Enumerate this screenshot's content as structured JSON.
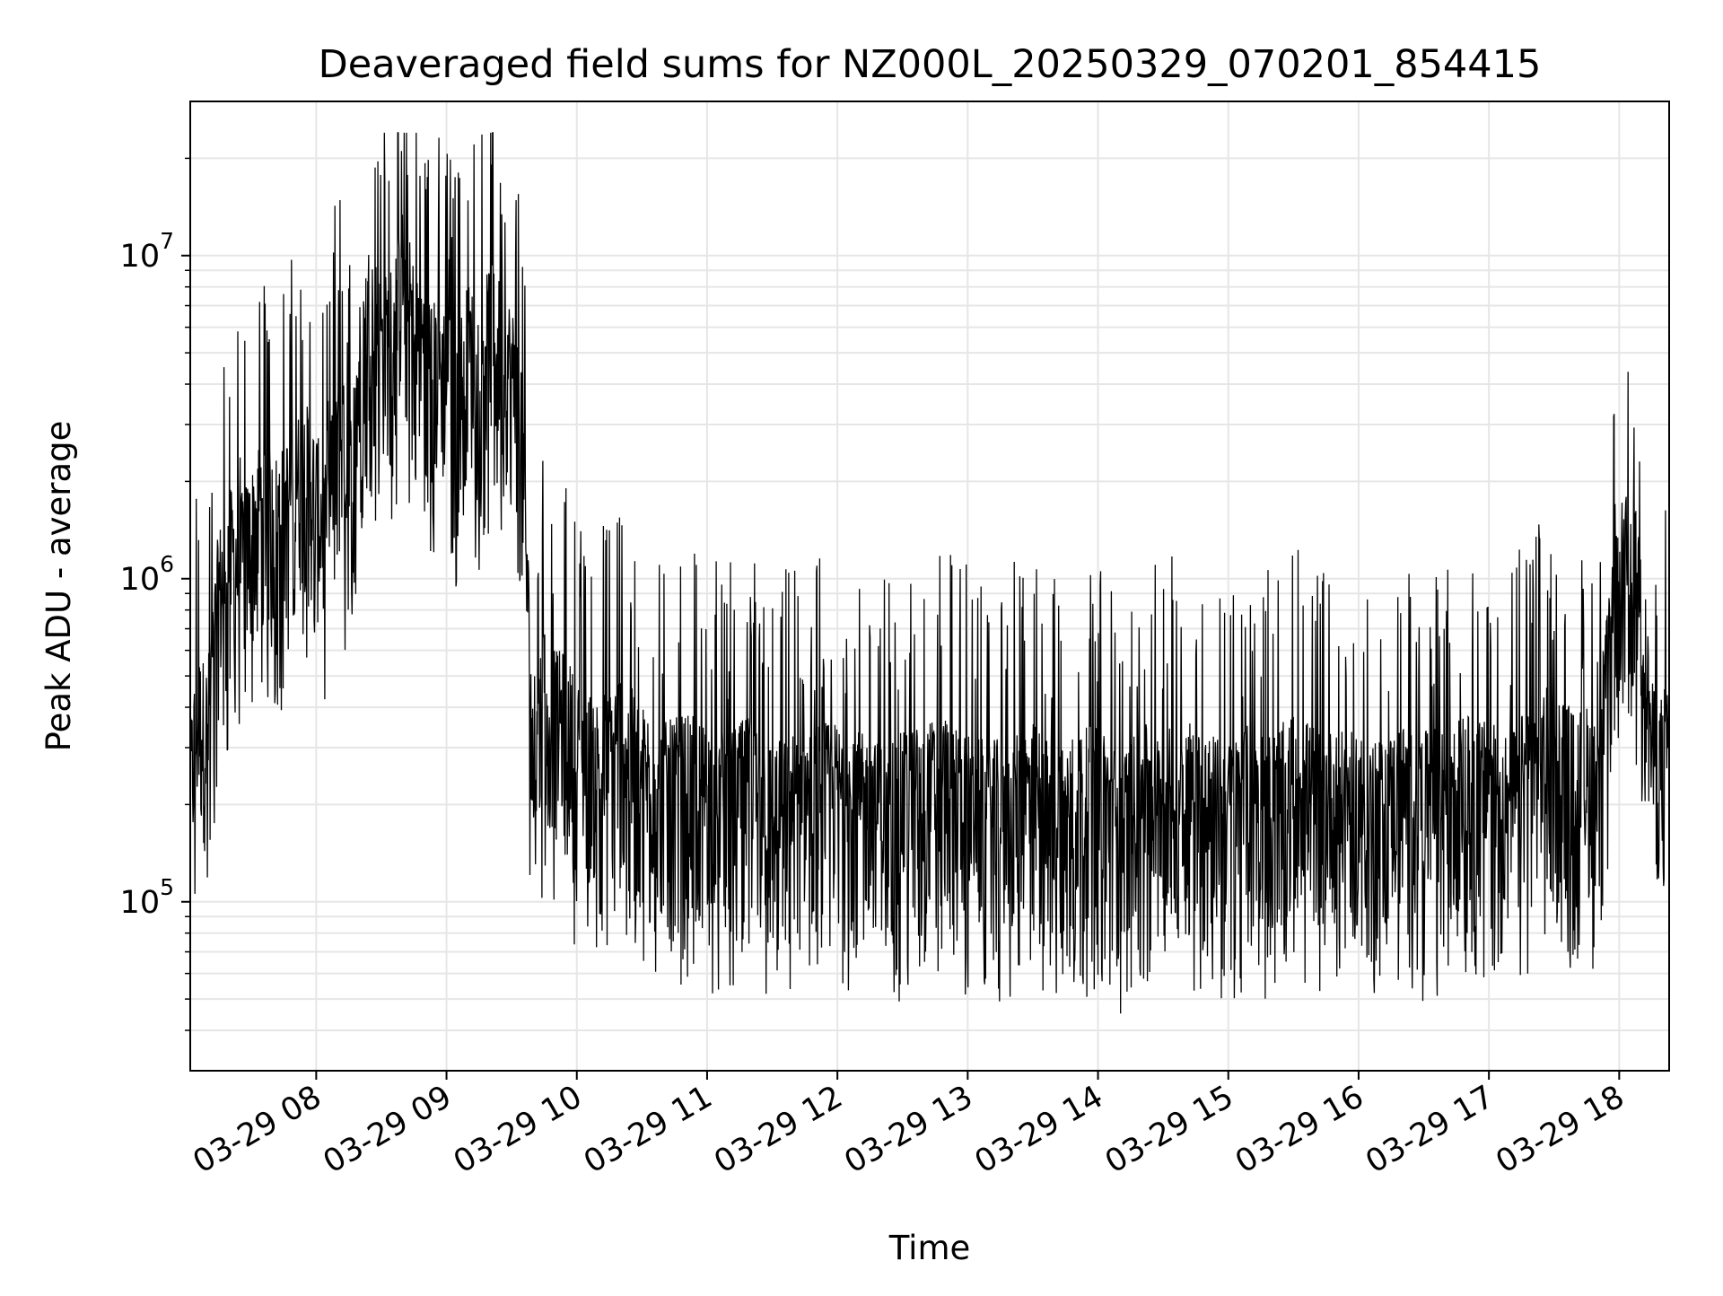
{
  "chart_data": {
    "type": "line",
    "title": "Deaveraged field sums for NZ000L_20250329_070201_854415",
    "xlabel": "Time",
    "ylabel": "Peak ADU - average",
    "yscale": "log",
    "ylim": [
      30000,
      30000000
    ],
    "xlim": [
      "2025-03-29 07:02",
      "2025-03-29 18:23"
    ],
    "x_ticks": [
      {
        "label": "03-29 08",
        "value": "2025-03-29 08:00"
      },
      {
        "label": "03-29 09",
        "value": "2025-03-29 09:00"
      },
      {
        "label": "03-29 10",
        "value": "2025-03-29 10:00"
      },
      {
        "label": "03-29 11",
        "value": "2025-03-29 11:00"
      },
      {
        "label": "03-29 12",
        "value": "2025-03-29 12:00"
      },
      {
        "label": "03-29 13",
        "value": "2025-03-29 13:00"
      },
      {
        "label": "03-29 14",
        "value": "2025-03-29 14:00"
      },
      {
        "label": "03-29 15",
        "value": "2025-03-29 15:00"
      },
      {
        "label": "03-29 16",
        "value": "2025-03-29 16:00"
      },
      {
        "label": "03-29 17",
        "value": "2025-03-29 17:00"
      },
      {
        "label": "03-29 18",
        "value": "2025-03-29 18:00"
      }
    ],
    "y_ticks": [
      {
        "base": "10",
        "exp": "5",
        "value": 100000
      },
      {
        "base": "10",
        "exp": "6",
        "value": 1000000
      },
      {
        "base": "10",
        "exp": "7",
        "value": 10000000
      }
    ],
    "grid": true,
    "line_color": "#000000",
    "grid_color": "#e6e6e6",
    "series": [
      {
        "x": [
          "2025-03-29 07:02",
          "2025-03-29 07:05",
          "2025-03-29 07:10",
          "2025-03-29 07:15",
          "2025-03-29 07:20",
          "2025-03-29 07:25",
          "2025-03-29 07:30",
          "2025-03-29 07:35",
          "2025-03-29 07:40",
          "2025-03-29 07:45",
          "2025-03-29 07:50",
          "2025-03-29 07:55",
          "2025-03-29 08:00",
          "2025-03-29 08:05",
          "2025-03-29 08:10",
          "2025-03-29 08:15",
          "2025-03-29 08:20",
          "2025-03-29 08:25",
          "2025-03-29 08:30",
          "2025-03-29 08:35",
          "2025-03-29 08:40",
          "2025-03-29 08:45",
          "2025-03-29 08:50",
          "2025-03-29 08:55",
          "2025-03-29 09:00",
          "2025-03-29 09:05",
          "2025-03-29 09:10",
          "2025-03-29 09:15",
          "2025-03-29 09:20",
          "2025-03-29 09:25",
          "2025-03-29 09:30",
          "2025-03-29 09:35",
          "2025-03-29 09:40",
          "2025-03-29 09:45",
          "2025-03-29 09:50",
          "2025-03-29 09:55",
          "2025-03-29 10:00",
          "2025-03-29 10:10",
          "2025-03-29 10:20",
          "2025-03-29 10:30",
          "2025-03-29 10:40",
          "2025-03-29 10:50",
          "2025-03-29 11:00",
          "2025-03-29 11:10",
          "2025-03-29 11:20",
          "2025-03-29 11:30",
          "2025-03-29 11:40",
          "2025-03-29 11:50",
          "2025-03-29 12:00",
          "2025-03-29 12:10",
          "2025-03-29 12:20",
          "2025-03-29 12:30",
          "2025-03-29 12:40",
          "2025-03-29 12:50",
          "2025-03-29 13:00",
          "2025-03-29 13:10",
          "2025-03-29 13:20",
          "2025-03-29 13:30",
          "2025-03-29 13:40",
          "2025-03-29 13:50",
          "2025-03-29 14:00",
          "2025-03-29 14:10",
          "2025-03-29 14:20",
          "2025-03-29 14:30",
          "2025-03-29 14:40",
          "2025-03-29 14:50",
          "2025-03-29 15:00",
          "2025-03-29 15:10",
          "2025-03-29 15:20",
          "2025-03-29 15:30",
          "2025-03-29 15:40",
          "2025-03-29 15:50",
          "2025-03-29 16:00",
          "2025-03-29 16:10",
          "2025-03-29 16:20",
          "2025-03-29 16:30",
          "2025-03-29 16:40",
          "2025-03-29 16:50",
          "2025-03-29 17:00",
          "2025-03-29 17:10",
          "2025-03-29 17:20",
          "2025-03-29 17:30",
          "2025-03-29 17:40",
          "2025-03-29 17:50",
          "2025-03-29 18:00",
          "2025-03-29 18:05",
          "2025-03-29 18:10",
          "2025-03-29 18:15",
          "2025-03-29 18:20",
          "2025-03-29 18:23"
        ],
        "values": [
          150000,
          250000,
          230000,
          600000,
          800000,
          750000,
          900000,
          1200000,
          1000000,
          1100000,
          1300000,
          1500000,
          1200000,
          900000,
          2500000,
          1200000,
          3000000,
          5000000,
          3500000,
          4000000,
          6000000,
          4000000,
          3500000,
          3000000,
          3000000,
          2500000,
          3500000,
          3000000,
          4000000,
          3500000,
          3000000,
          2000000,
          150000,
          350000,
          250000,
          250000,
          200000,
          180000,
          220000,
          170000,
          150000,
          160000,
          150000,
          140000,
          160000,
          130000,
          140000,
          150000,
          150000,
          140000,
          130000,
          140000,
          150000,
          160000,
          140000,
          130000,
          140000,
          150000,
          130000,
          140000,
          150000,
          120000,
          150000,
          140000,
          160000,
          140000,
          130000,
          150000,
          140000,
          160000,
          150000,
          140000,
          140000,
          130000,
          150000,
          140000,
          150000,
          160000,
          150000,
          140000,
          180000,
          200000,
          160000,
          180000,
          700000,
          800000,
          600000,
          200000,
          180000,
          250000
        ]
      }
    ]
  }
}
